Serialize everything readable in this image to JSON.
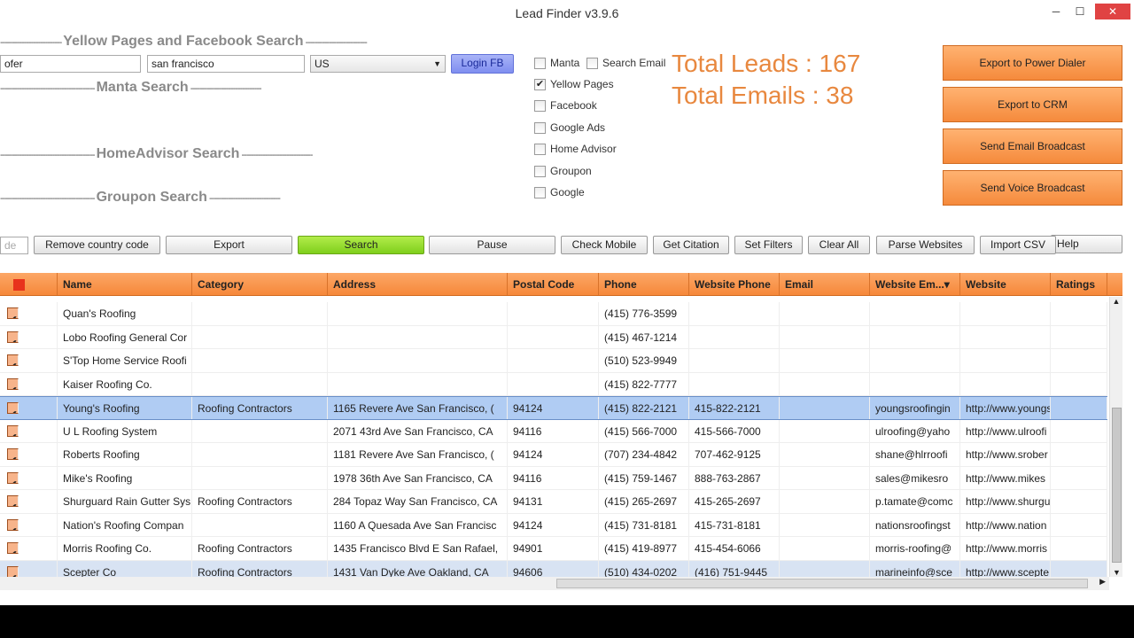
{
  "window": {
    "title": "Lead Finder v3.9.6",
    "minimize": "─",
    "maximize": "☐",
    "close": "✕"
  },
  "sections": {
    "yp_fb": "Yellow Pages and Facebook Search",
    "manta": "Manta Search",
    "homeadvisor": "HomeAdvisor Search",
    "groupon": "Groupon Search"
  },
  "search": {
    "keyword": "ofer",
    "location": "san francisco",
    "country": "US",
    "login_fb": "Login FB",
    "partial_input": "de"
  },
  "sources": [
    {
      "label": "Manta",
      "checked": false
    },
    {
      "label": "Search Email",
      "checked": false
    },
    {
      "label": "Yellow Pages",
      "checked": true
    },
    {
      "label": "Facebook",
      "checked": false
    },
    {
      "label": "Google Ads",
      "checked": false
    },
    {
      "label": "Home Advisor",
      "checked": false
    },
    {
      "label": "Groupon",
      "checked": false
    },
    {
      "label": "Google",
      "checked": false
    }
  ],
  "totals": {
    "leads": "Total Leads : 167",
    "emails": "Total Emails : 38"
  },
  "actions": [
    "Export to Power Dialer",
    "Export to CRM",
    "Send Email Broadcast",
    "Send Voice Broadcast"
  ],
  "toolbar": {
    "remove_cc": "Remove country code",
    "export": "Export",
    "search": "Search",
    "pause": "Pause",
    "check_mobile": "Check Mobile",
    "get_citation": "Get Citation",
    "set_filters": "Set Filters",
    "clear_all": "Clear All",
    "parse_websites": "Parse Websites",
    "import_csv": "Import CSV",
    "help": "Help"
  },
  "colors": {
    "accent": "#f6883a",
    "search_green": "#7fcf1c",
    "selection": "#b0ccf3"
  },
  "table": {
    "columns": [
      "Name",
      "Category",
      "Address",
      "Postal Code",
      "Phone",
      "Website Phone",
      "Email",
      "Website Em...▾",
      "Website",
      "Ratings"
    ],
    "rows": [
      [
        "Quan's Roofing",
        "",
        "",
        "",
        "(415) 776-3599",
        "",
        "",
        "",
        "",
        ""
      ],
      [
        "Lobo Roofing General Cor",
        "",
        "",
        "",
        "(415) 467-1214",
        "",
        "",
        "",
        "",
        ""
      ],
      [
        "S'Top Home Service Roofi",
        "",
        "",
        "",
        "(510) 523-9949",
        "",
        "",
        "",
        "",
        ""
      ],
      [
        "Kaiser Roofing Co.",
        "",
        "",
        "",
        "(415) 822-7777",
        "",
        "",
        "",
        "",
        ""
      ],
      [
        "Young's Roofing",
        "Roofing Contractors",
        "1165 Revere Ave San Francisco, (",
        "94124",
        "(415) 822-2121",
        "415-822-2121",
        "",
        "youngsroofingin",
        "http://www.youngs",
        ""
      ],
      [
        "U L Roofing System",
        "",
        "2071 43rd Ave San Francisco,  CA",
        "94116",
        "(415) 566-7000",
        "415-566-7000",
        "",
        "ulroofing@yaho",
        "http://www.ulroofi",
        ""
      ],
      [
        "Roberts Roofing",
        "",
        "1181 Revere Ave San Francisco, (",
        "94124",
        "(707) 234-4842",
        "707-462-9125",
        "",
        "shane@hlrroofi",
        "http://www.srober",
        ""
      ],
      [
        "Mike's Roofing",
        "",
        "1978 36th Ave San Francisco,  CA",
        "94116",
        "(415) 759-1467",
        "888-763-2867",
        "",
        "sales@mikesro",
        "http://www.mikes",
        ""
      ],
      [
        "Shurguard Rain Gutter Sys",
        "Roofing Contractors",
        "284 Topaz Way San Francisco,  CA",
        "94131",
        "(415) 265-2697",
        "415-265-2697",
        "",
        "p.tamate@comc",
        "http://www.shurgu",
        ""
      ],
      [
        "Nation's Roofing Compan",
        "",
        "1160 A Quesada Ave San Francisc",
        "94124",
        "(415) 731-8181",
        "415-731-8181",
        "",
        "nationsroofingst",
        "http://www.nation",
        ""
      ],
      [
        "Morris Roofing Co.",
        "Roofing Contractors",
        "1435 Francisco Blvd E San Rafael,",
        "94901",
        "(415) 419-8977",
        "415-454-6066",
        "",
        "morris-roofing@",
        "http://www.morris",
        ""
      ],
      [
        "Scepter Co",
        "Roofing Contractors",
        "1431 Van Dyke Ave Oakland,  CA",
        "94606",
        "(510) 434-0202",
        "(416) 751-9445",
        "",
        "marineinfo@sce",
        "http://www.scepte",
        ""
      ]
    ]
  }
}
